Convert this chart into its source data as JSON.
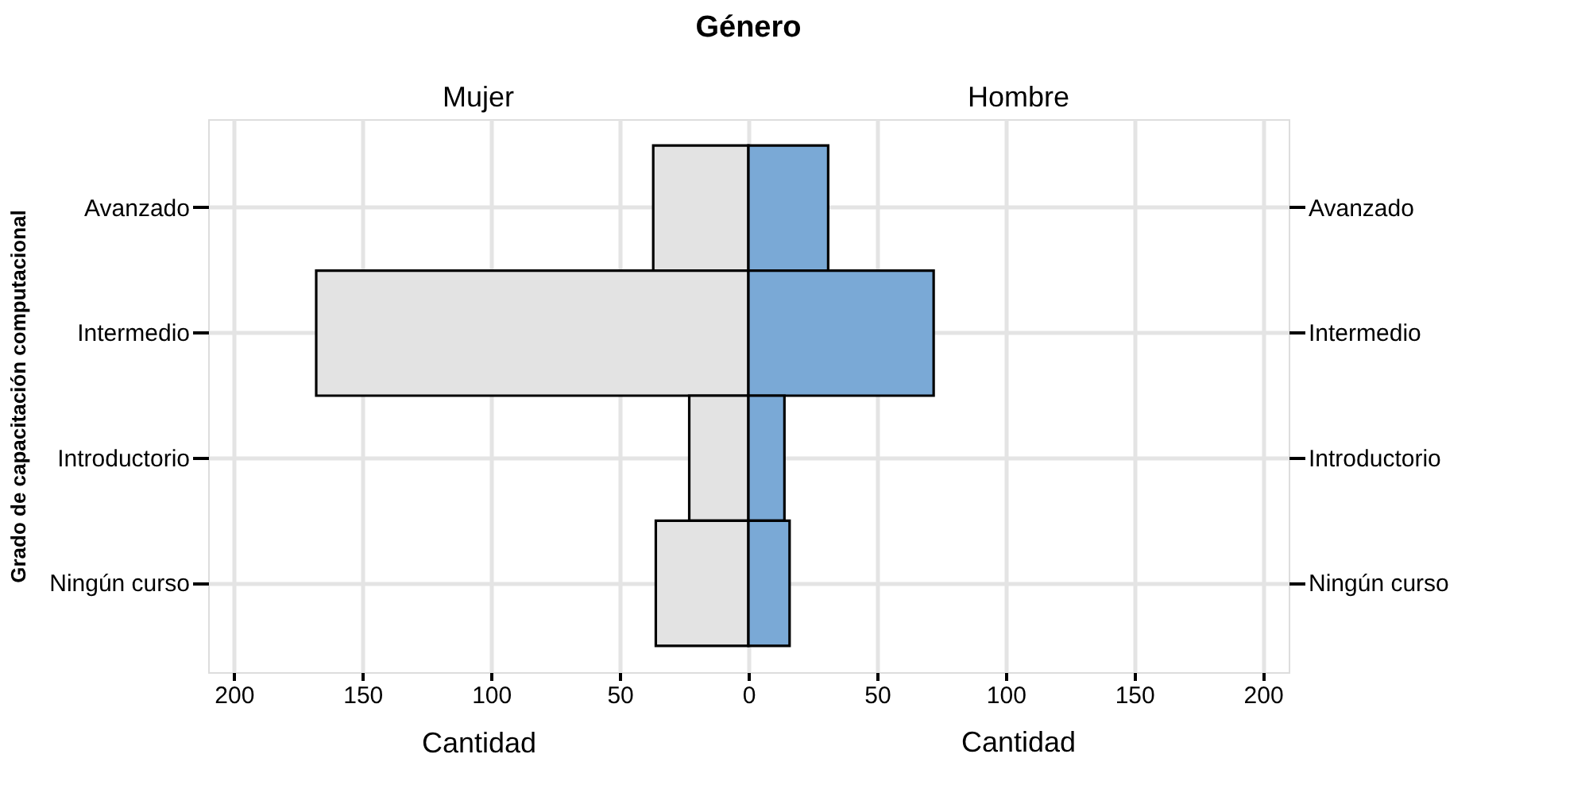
{
  "chart_data": {
    "type": "bar",
    "orientation": "horizontal",
    "title": "Género",
    "xlabel": "Cantidad",
    "ylabel": "Grado de capacitación computacional",
    "categories": [
      "Avanzado",
      "Intermedio",
      "Introductorio",
      "Ningún curso"
    ],
    "series": [
      {
        "color": "#e3e3e3",
        "values": [
          -37,
          -168,
          -23,
          -36
        ]
      },
      {
        "color": "#7aa9d6",
        "values": [
          31,
          72,
          14,
          16
        ]
      }
    ],
    "annotations": [
      "Mujer",
      "Hombre"
    ],
    "xlim": [
      -210,
      210
    ],
    "xticks": [
      {
        "value": -200,
        "label": "200"
      },
      {
        "value": -150,
        "label": "150"
      },
      {
        "value": -100,
        "label": "100"
      },
      {
        "value": -50,
        "label": "50"
      },
      0,
      50,
      100,
      150,
      200
    ],
    "stacked": true,
    "grid": true
  }
}
